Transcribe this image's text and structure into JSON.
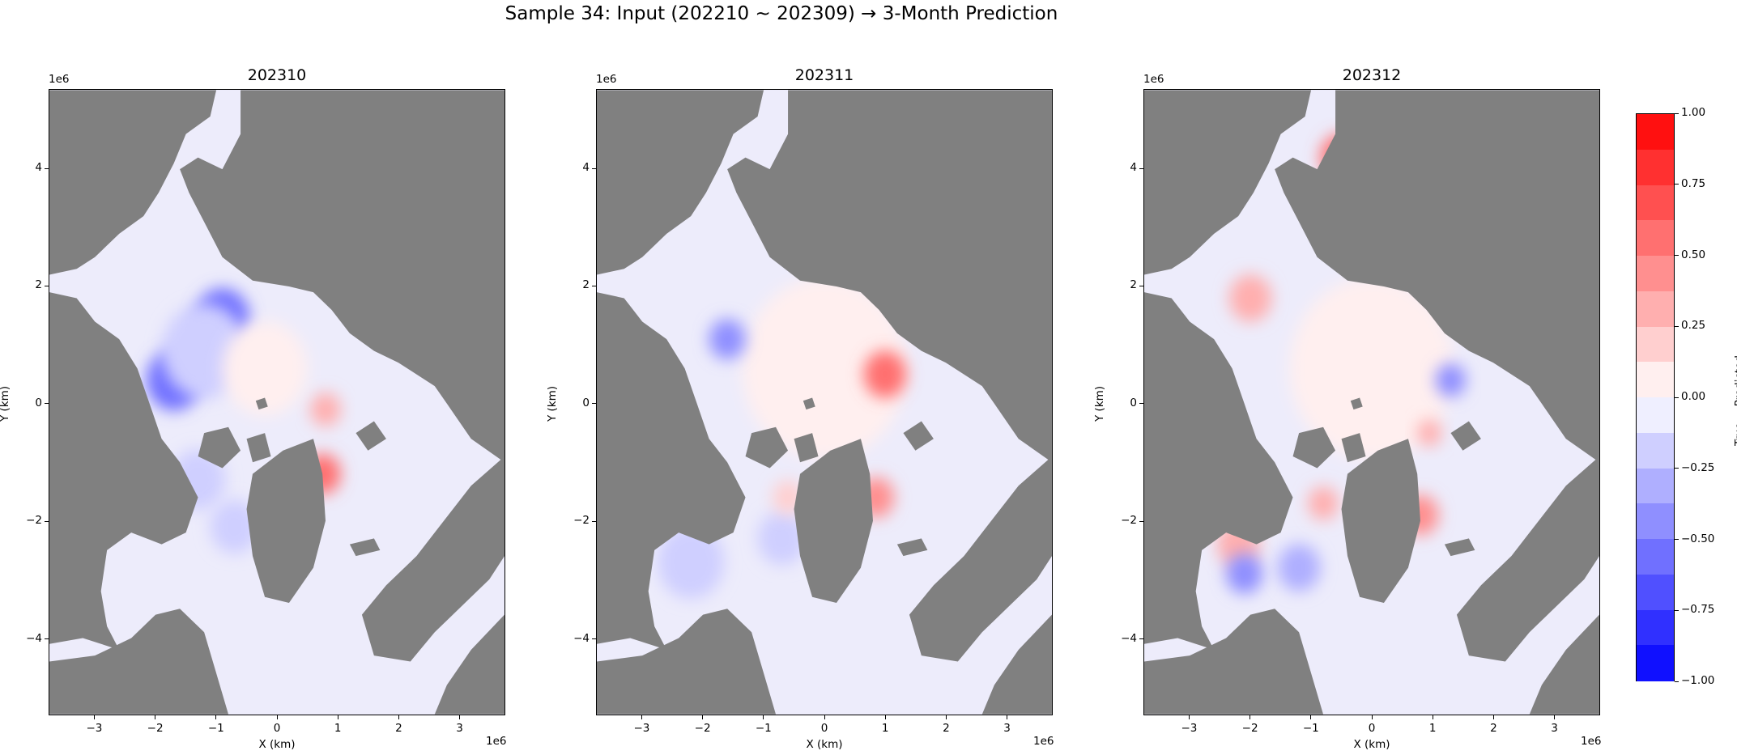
{
  "figure": {
    "title": "Sample 34: Input (202210 ~ 202309) → 3-Month Prediction"
  },
  "chart_data": [
    {
      "type": "heatmap",
      "title": "202310",
      "xlabel": "X (km)",
      "ylabel": "Y (km)",
      "x_offset_label": "1e6",
      "y_offset_label": "1e6",
      "xticks": [
        -3,
        -2,
        -1,
        0,
        1,
        2,
        3
      ],
      "yticks": [
        4,
        2,
        0,
        -2,
        -4
      ],
      "xlim": [
        -3.75,
        3.75
      ],
      "ylim": [
        -5.3,
        5.35
      ],
      "anomalies": [
        {
          "x": -1.7,
          "y": 0.4,
          "r": 0.45,
          "value": -0.6
        },
        {
          "x": -0.9,
          "y": 1.45,
          "r": 0.45,
          "value": -0.6
        },
        {
          "x": -1.2,
          "y": 0.9,
          "r": 0.7,
          "value": -0.25
        },
        {
          "x": -1.3,
          "y": -1.3,
          "r": 0.45,
          "value": -0.2
        },
        {
          "x": -0.7,
          "y": -2.1,
          "r": 0.4,
          "value": -0.25
        },
        {
          "x": 0.75,
          "y": -1.2,
          "r": 0.3,
          "value": 0.5
        },
        {
          "x": 0.8,
          "y": -0.1,
          "r": 0.25,
          "value": 0.35
        },
        {
          "x": -0.2,
          "y": 0.6,
          "r": 0.7,
          "value": 0.05
        }
      ]
    },
    {
      "type": "heatmap",
      "title": "202311",
      "xlabel": "X (km)",
      "ylabel": "Y (km)",
      "x_offset_label": "1e6",
      "y_offset_label": "1e6",
      "xticks": [
        -3,
        -2,
        -1,
        0,
        1,
        2,
        3
      ],
      "yticks": [
        4,
        2,
        0,
        -2,
        -4
      ],
      "xlim": [
        -3.75,
        3.75
      ],
      "ylim": [
        -5.3,
        5.35
      ],
      "anomalies": [
        {
          "x": 0.0,
          "y": 0.6,
          "r": 1.35,
          "value": 0.08
        },
        {
          "x": 1.0,
          "y": 0.5,
          "r": 0.35,
          "value": 0.5
        },
        {
          "x": 0.85,
          "y": -1.6,
          "r": 0.3,
          "value": 0.45
        },
        {
          "x": -1.6,
          "y": 1.1,
          "r": 0.3,
          "value": -0.5
        },
        {
          "x": -2.2,
          "y": -2.7,
          "r": 0.55,
          "value": -0.22
        },
        {
          "x": -0.7,
          "y": -2.3,
          "r": 0.4,
          "value": -0.25
        },
        {
          "x": -0.6,
          "y": -1.6,
          "r": 0.25,
          "value": 0.2
        }
      ]
    },
    {
      "type": "heatmap",
      "title": "202312",
      "xlabel": "X (km)",
      "ylabel": "Y (km)",
      "x_offset_label": "1e6",
      "y_offset_label": "1e6",
      "xticks": [
        -3,
        -2,
        -1,
        0,
        1,
        2,
        3
      ],
      "yticks": [
        4,
        2,
        0,
        -2,
        -4
      ],
      "xlim": [
        -3.75,
        3.75
      ],
      "ylim": [
        -5.3,
        5.35
      ],
      "anomalies": [
        {
          "x": 0.0,
          "y": 0.6,
          "r": 1.35,
          "value": 0.08
        },
        {
          "x": -0.5,
          "y": 4.2,
          "r": 0.35,
          "value": 0.5
        },
        {
          "x": -2.0,
          "y": 1.8,
          "r": 0.35,
          "value": 0.3
        },
        {
          "x": 0.8,
          "y": -1.9,
          "r": 0.3,
          "value": 0.45
        },
        {
          "x": -2.2,
          "y": -2.4,
          "r": 0.35,
          "value": 0.35
        },
        {
          "x": -2.1,
          "y": -2.9,
          "r": 0.3,
          "value": -0.5
        },
        {
          "x": -1.2,
          "y": -2.8,
          "r": 0.35,
          "value": -0.35
        },
        {
          "x": 1.3,
          "y": 0.4,
          "r": 0.25,
          "value": -0.4
        },
        {
          "x": 0.95,
          "y": -0.5,
          "r": 0.2,
          "value": 0.35
        },
        {
          "x": -0.8,
          "y": -1.7,
          "r": 0.25,
          "value": 0.25
        }
      ]
    }
  ],
  "colorbar": {
    "label": "True − Predicted",
    "ticks": [
      1.0,
      0.75,
      0.5,
      0.25,
      0.0,
      -0.25,
      -0.5,
      -0.75,
      -1.0
    ],
    "tick_labels": [
      "1.00",
      "0.75",
      "0.50",
      "0.25",
      "0.00",
      "−0.25",
      "−0.50",
      "−0.75",
      "−1.00"
    ],
    "levels": 16,
    "min": -1.0,
    "max": 1.0,
    "colormap": "bwr",
    "land_color": "#808080"
  }
}
